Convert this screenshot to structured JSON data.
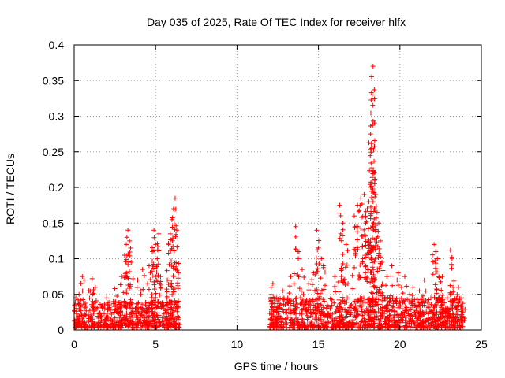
{
  "chart_data": {
    "type": "scatter",
    "title": "Day 035 of 2025, Rate Of TEC Index for receiver hlfx",
    "xlabel": "GPS time / hours",
    "ylabel": "ROTI / TECUs",
    "xlim": [
      0,
      25
    ],
    "ylim": [
      0,
      0.4
    ],
    "grid": true,
    "marker": "+",
    "color": "#ff0000",
    "x_ticks": [
      0,
      5,
      10,
      15,
      20,
      25
    ],
    "x_tick_labels": [
      "0",
      "5",
      "10",
      "15",
      "20",
      "25"
    ],
    "y_ticks": [
      0,
      0.05,
      0.1,
      0.15,
      0.2,
      0.25,
      0.3,
      0.35,
      0.4
    ],
    "y_tick_labels": [
      "0",
      "0.05",
      "0.1",
      "0.15",
      "0.2",
      "0.25",
      "0.3",
      "0.35",
      "0.4"
    ],
    "series": [
      {
        "name": "ROTI",
        "x": [
          0.1,
          0.3,
          0.5,
          0.6,
          0.9,
          1.1,
          1.3,
          2.0,
          2.5,
          2.9,
          3.1,
          3.2,
          3.3,
          3.4,
          3.5,
          3.9,
          4.2,
          4.6,
          4.8,
          4.9,
          5.0,
          5.1,
          5.2,
          5.3,
          5.8,
          5.9,
          6.0,
          6.1,
          6.2,
          6.3,
          6.4,
          12.1,
          12.2,
          12.8,
          13.3,
          13.6,
          13.8,
          14.0,
          14.4,
          14.7,
          14.9,
          15.0,
          15.2,
          15.3,
          16.0,
          16.3,
          16.5,
          16.7,
          17.2,
          17.4,
          17.6,
          17.8,
          17.9,
          18.0,
          18.1,
          18.2,
          18.3,
          18.35,
          18.4,
          18.45,
          18.5,
          18.6,
          18.7,
          18.8,
          18.9,
          19.2,
          19.5,
          19.9,
          20.1,
          20.3,
          20.6,
          20.8,
          21.2,
          21.5,
          21.9,
          22.1,
          22.2,
          22.3,
          22.6,
          22.9,
          23.1,
          23.2,
          23.6,
          23.8
        ],
        "y": [
          0.045,
          0.05,
          0.075,
          0.07,
          0.055,
          0.072,
          0.06,
          0.045,
          0.058,
          0.075,
          0.105,
          0.12,
          0.14,
          0.125,
          0.095,
          0.07,
          0.085,
          0.09,
          0.11,
          0.14,
          0.12,
          0.1,
          0.135,
          0.075,
          0.12,
          0.135,
          0.155,
          0.17,
          0.185,
          0.14,
          0.08,
          0.06,
          0.065,
          0.055,
          0.075,
          0.145,
          0.11,
          0.085,
          0.065,
          0.08,
          0.14,
          0.115,
          0.1,
          0.09,
          0.075,
          0.175,
          0.15,
          0.12,
          0.16,
          0.175,
          0.185,
          0.19,
          0.15,
          0.17,
          0.18,
          0.275,
          0.33,
          0.37,
          0.22,
          0.21,
          0.19,
          0.165,
          0.15,
          0.125,
          0.095,
          0.075,
          0.09,
          0.08,
          0.06,
          0.075,
          0.05,
          0.06,
          0.055,
          0.07,
          0.045,
          0.12,
          0.11,
          0.1,
          0.075,
          0.045,
          0.112,
          0.102,
          0.06,
          0.045
        ]
      }
    ],
    "dense_clusters": [
      {
        "x_range": [
          0,
          6.5
        ],
        "y_typical": [
          0,
          0.04
        ]
      },
      {
        "x_range": [
          12,
          24
        ],
        "y_typical": [
          0,
          0.045
        ]
      }
    ]
  }
}
